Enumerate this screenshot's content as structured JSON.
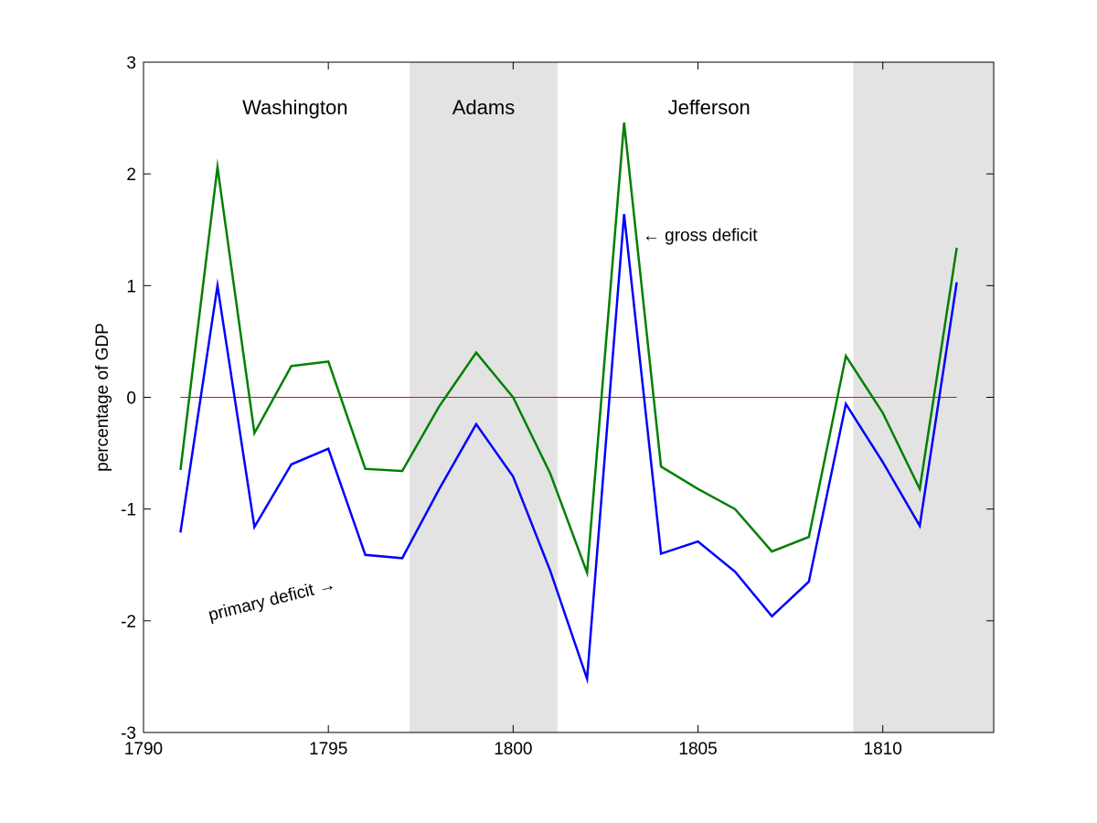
{
  "chart_data": {
    "type": "line",
    "title": "",
    "xlabel": "",
    "ylabel": "percentage of GDP",
    "xlim": [
      1790,
      1813
    ],
    "ylim": [
      -3,
      3
    ],
    "x_ticks": [
      1790,
      1795,
      1800,
      1805,
      1810
    ],
    "y_ticks": [
      -3,
      -2,
      -1,
      0,
      1,
      2,
      3
    ],
    "grid": false,
    "colors": {
      "gross": "#008000",
      "primary": "#0000ff",
      "zero_line": "#ff0000",
      "shading": "#e3e3e3"
    },
    "shaded_periods": [
      {
        "start": 1797.2,
        "end": 1801.2
      },
      {
        "start": 1809.2,
        "end": 1813
      }
    ],
    "period_labels": [
      {
        "text": "Washington",
        "x": 1794.1,
        "y": 2.6
      },
      {
        "text": "Adams",
        "x": 1799.2,
        "y": 2.6
      },
      {
        "text": "Jefferson",
        "x": 1805.3,
        "y": 2.6
      }
    ],
    "x": [
      1791,
      1792,
      1793,
      1794,
      1795,
      1796,
      1797,
      1798,
      1799,
      1800,
      1801,
      1802,
      1803,
      1804,
      1805,
      1806,
      1807,
      1808,
      1809,
      1810,
      1811,
      1812
    ],
    "series": [
      {
        "key": "gross",
        "values": [
          -0.65,
          2.06,
          -0.32,
          0.28,
          0.32,
          -0.64,
          -0.66,
          -0.08,
          0.4,
          0.0,
          -0.68,
          -1.57,
          2.46,
          -0.62,
          -0.82,
          -1.0,
          -1.38,
          -1.25,
          0.37,
          -0.14,
          -0.82,
          1.34
        ]
      },
      {
        "key": "primary",
        "values": [
          -1.21,
          1.0,
          -1.16,
          -0.6,
          -0.46,
          -1.41,
          -1.44,
          -0.82,
          -0.24,
          -0.71,
          -1.55,
          -2.52,
          1.64,
          -1.4,
          -1.29,
          -1.56,
          -1.96,
          -1.65,
          -0.06,
          -0.58,
          -1.15,
          1.03
        ]
      }
    ],
    "zero_line": {
      "x": [
        1791,
        1812
      ],
      "y": 0
    },
    "annotations": [
      {
        "text": "← gross deficit",
        "x": 1803.5,
        "y": 1.4,
        "angle": 0
      },
      {
        "text": "primary deficit →",
        "x": 1791.8,
        "y": -2.0,
        "angle": -14
      }
    ]
  }
}
